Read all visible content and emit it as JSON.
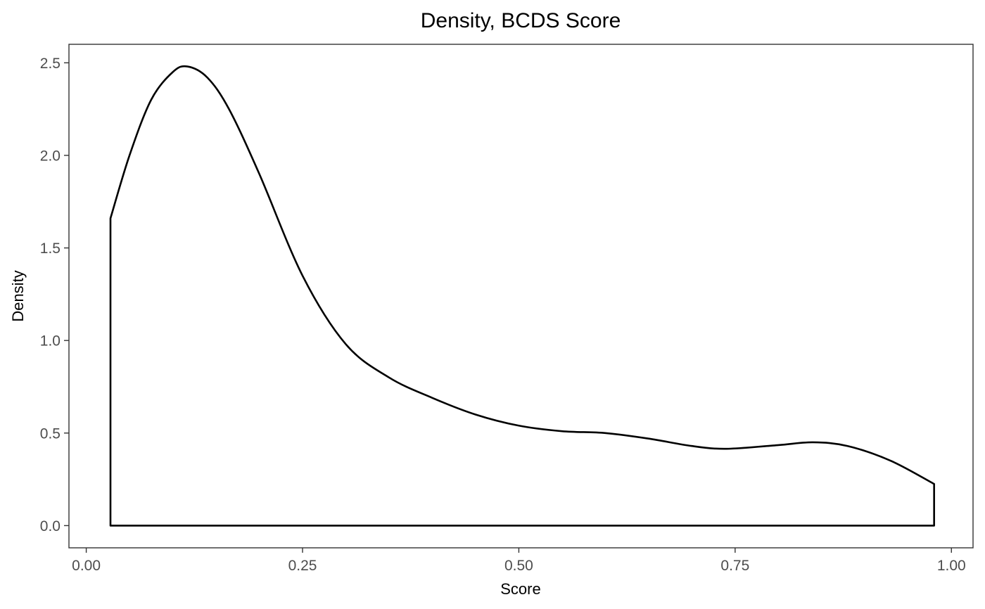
{
  "chart_data": {
    "type": "area",
    "title": "Density, BCDS Score",
    "xlabel": "Score",
    "ylabel": "Density",
    "xlim": [
      -0.02,
      1.025
    ],
    "ylim": [
      -0.12,
      2.6
    ],
    "x_ticks": [
      0.0,
      0.25,
      0.5,
      0.75,
      1.0
    ],
    "x_tick_labels": [
      "0.00",
      "0.25",
      "0.50",
      "0.75",
      "1.00"
    ],
    "y_ticks": [
      0.0,
      0.5,
      1.0,
      1.5,
      2.0,
      2.5
    ],
    "y_tick_labels": [
      "0.0",
      "0.5",
      "1.0",
      "1.5",
      "2.0",
      "2.5"
    ],
    "grid": false,
    "fill": "none",
    "line_color": "#000000",
    "series": [
      {
        "x": [
          0.028,
          0.05,
          0.075,
          0.1,
          0.117,
          0.14,
          0.165,
          0.2,
          0.25,
          0.3,
          0.35,
          0.4,
          0.45,
          0.5,
          0.55,
          0.6,
          0.65,
          0.7,
          0.74,
          0.8,
          0.84,
          0.88,
          0.93,
          0.98
        ],
        "y": [
          1.66,
          2.0,
          2.3,
          2.45,
          2.48,
          2.42,
          2.25,
          1.9,
          1.35,
          0.98,
          0.8,
          0.69,
          0.6,
          0.54,
          0.51,
          0.5,
          0.47,
          0.43,
          0.415,
          0.435,
          0.45,
          0.43,
          0.35,
          0.225
        ]
      }
    ]
  }
}
